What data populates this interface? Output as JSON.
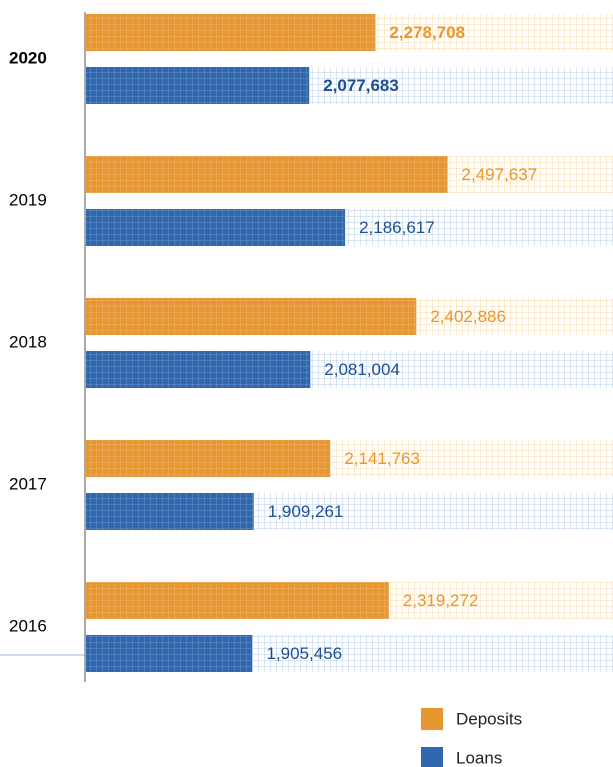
{
  "chart_data": {
    "type": "hbar",
    "categories": [
      "2020",
      "2019",
      "2018",
      "2017",
      "2016"
    ],
    "series": [
      {
        "name": "Deposits",
        "color": "#e8962f",
        "values": [
          2278708,
          2497637,
          2402886,
          2141763,
          2319272
        ],
        "value_labels": [
          "2,278,708",
          "2,497,637",
          "2,402,886",
          "2,141,763",
          "2,319,272"
        ]
      },
      {
        "name": "Loans",
        "color": "#2f68b0",
        "values": [
          2077683,
          2186617,
          2081004,
          1909261,
          1905456
        ],
        "value_labels": [
          "2,077,683",
          "2,186,617",
          "2,081,004",
          "1,909,261",
          "1,905,456"
        ]
      }
    ],
    "xlim": [
      1400000,
      3000000
    ]
  }
}
